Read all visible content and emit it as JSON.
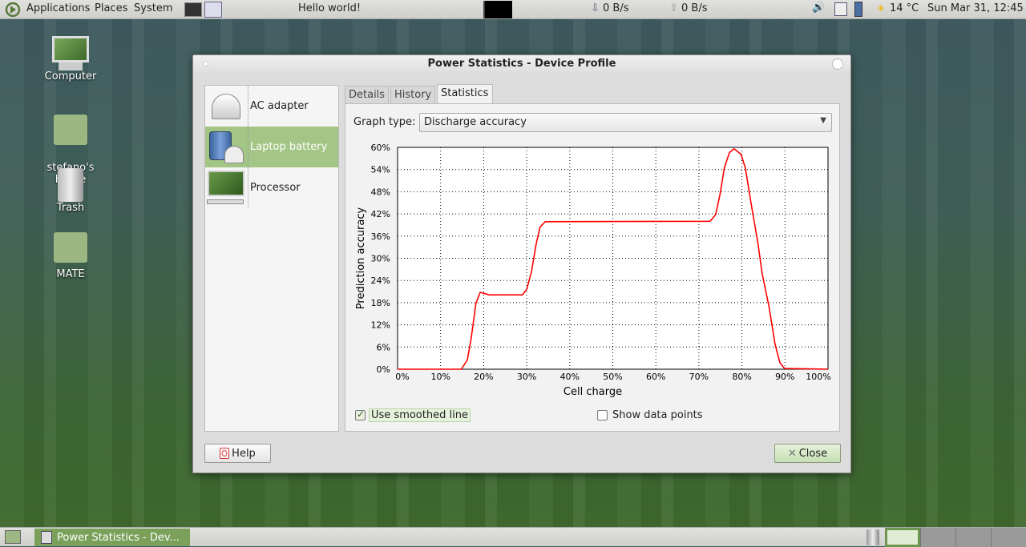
{
  "top_panel": {
    "menus": [
      "Applications",
      "Places",
      "System"
    ],
    "hello": "Hello world!",
    "net_down": "0 B/s",
    "net_up": "0 B/s",
    "weather": "14 °C",
    "clock": "Sun Mar 31, 12:45"
  },
  "desktop": {
    "icons": [
      "Computer",
      "stefano's\nHome",
      "Trash",
      "MATE"
    ]
  },
  "dialog": {
    "title": "Power Statistics - Device Profile",
    "devices": [
      {
        "label": "AC adapter",
        "icon": "ac-adapter-icon"
      },
      {
        "label": "Laptop battery",
        "icon": "battery-icon",
        "selected": true
      },
      {
        "label": "Processor",
        "icon": "computer-icon"
      }
    ],
    "tabs": [
      "Details",
      "History",
      "Statistics"
    ],
    "active_tab": "Statistics",
    "graph_type_label": "Graph type:",
    "graph_type_value": "Discharge accuracy",
    "smoothed_label": "Use smoothed line",
    "smoothed_checked": true,
    "points_label": "Show data points",
    "points_checked": false,
    "help_label": "Help",
    "close_label": "Close"
  },
  "chart_data": {
    "type": "line",
    "xlabel": "Cell charge",
    "ylabel": "Prediction accuracy",
    "xlim": [
      0,
      100
    ],
    "ylim": [
      0,
      60
    ],
    "xticks": [
      "0%",
      "10%",
      "20%",
      "30%",
      "40%",
      "50%",
      "60%",
      "70%",
      "80%",
      "90%",
      "100%"
    ],
    "yticks": [
      "0%",
      "6%",
      "12%",
      "18%",
      "24%",
      "30%",
      "36%",
      "42%",
      "48%",
      "54%",
      "60%"
    ],
    "grid": true,
    "line_color": "#ff0000",
    "x": [
      0,
      14.8,
      16.2,
      17.1,
      18.2,
      19.2,
      21.3,
      29.0,
      30.0,
      31.1,
      32.2,
      33.1,
      34.3,
      72.6,
      73.9,
      74.9,
      75.9,
      77.1,
      78.2,
      79.8,
      80.8,
      82.1,
      83.7,
      84.7,
      86.3,
      87.7,
      88.8,
      89.9,
      100
    ],
    "y": [
      0,
      0,
      2.5,
      8.3,
      17.8,
      20.8,
      20.1,
      20.1,
      21.6,
      26.3,
      33.9,
      38.4,
      39.9,
      40.0,
      41.8,
      47.2,
      54.4,
      58.6,
      59.6,
      58.1,
      54.4,
      45.0,
      34.2,
      25.9,
      16.9,
      6.8,
      1.8,
      0.2,
      0
    ]
  },
  "bottom_panel": {
    "task": "Power Statistics - Dev..."
  }
}
